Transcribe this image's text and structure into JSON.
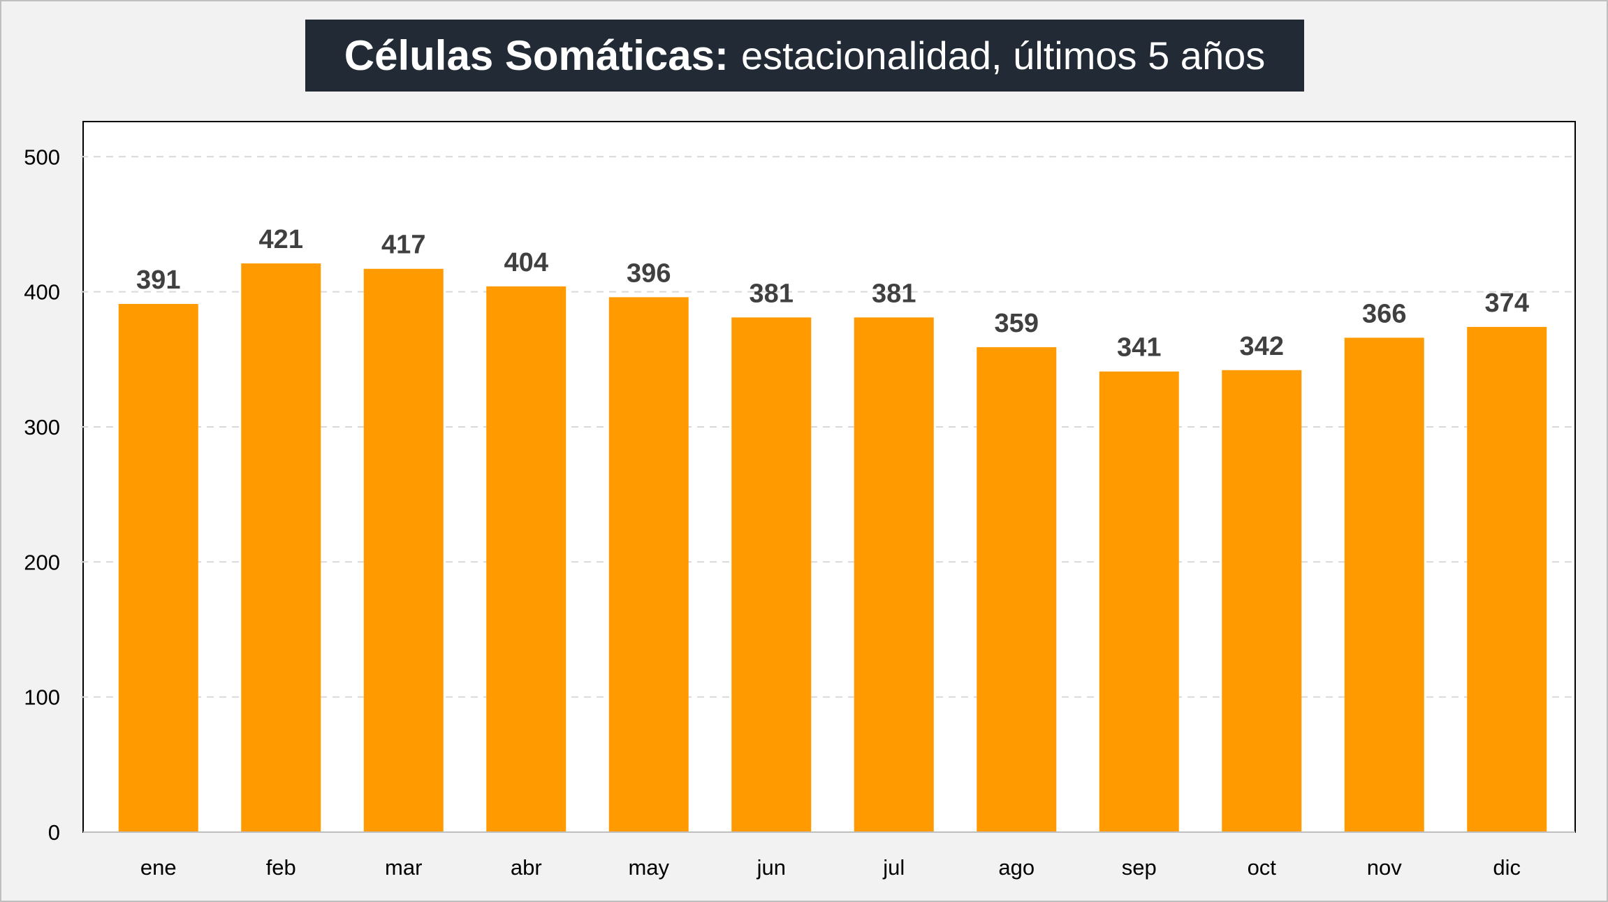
{
  "title": {
    "main": "Células Somáticas:",
    "sub": "estacionalidad, últimos 5 años"
  },
  "colors": {
    "bar": "#ff9b00",
    "title_bg": "#222a35",
    "title_text": "#ffffff",
    "data_label": "#404040",
    "grid": "#d9d9d9",
    "plot_bg": "#ffffff",
    "page_bg": "#f2f2f2"
  },
  "chart_data": {
    "type": "bar",
    "title": "Células Somáticas: estacionalidad, últimos 5 años",
    "categories": [
      "ene",
      "feb",
      "mar",
      "abr",
      "may",
      "jun",
      "jul",
      "ago",
      "sep",
      "oct",
      "nov",
      "dic"
    ],
    "values": [
      391,
      421,
      417,
      404,
      396,
      381,
      381,
      359,
      341,
      342,
      366,
      374
    ],
    "data_labels": [
      "391",
      "421",
      "417",
      "404",
      "396",
      "381",
      "381",
      "359",
      "341",
      "342",
      "366",
      "374"
    ],
    "y_ticks": [
      "0",
      "100",
      "200",
      "300",
      "400",
      "500"
    ],
    "ylim": [
      0,
      526
    ],
    "xlabel": "",
    "ylabel": "",
    "grid": "horizontal dashed",
    "legend": "none"
  }
}
